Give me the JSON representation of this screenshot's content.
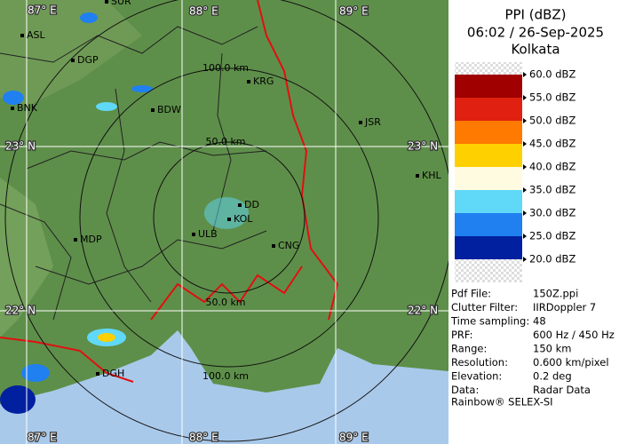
{
  "map": {
    "cities": [
      "SUR",
      "ASL",
      "DGP",
      "BNK",
      "BDW",
      "KRG",
      "JSR",
      "KHL",
      "DD",
      "KOL",
      "ULB",
      "CNG",
      "MDP",
      "DGH"
    ],
    "range_labels": [
      "100.0 km",
      "50.0 km",
      "50.0 km",
      "100.0 km"
    ],
    "grid_labels": [
      "87° E",
      "88° E",
      "89° E",
      "87° E",
      "88° E",
      "89° E",
      "23° N",
      "23° N",
      "22° N",
      "22° N"
    ]
  },
  "panel": {
    "title": "PPI (dBZ)",
    "time": "06:02 / 26-Sep-2025",
    "site": "Kolkata",
    "scale": [
      {
        "label": "60.0 dBZ",
        "color": "#a00000"
      },
      {
        "label": "55.0 dBZ",
        "color": "#e02010"
      },
      {
        "label": "50.0 dBZ",
        "color": "#ff7a00"
      },
      {
        "label": "45.0 dBZ",
        "color": "#ffd000"
      },
      {
        "label": "40.0 dBZ",
        "color": "#fffbe0"
      },
      {
        "label": "35.0 dBZ",
        "color": "#60d8f8"
      },
      {
        "label": "30.0 dBZ",
        "color": "#2080f0"
      },
      {
        "label": "25.0 dBZ",
        "color": "#0020a0"
      },
      {
        "label": "20.0 dBZ",
        "color": "#e8e8e8"
      }
    ],
    "info": [
      [
        "Pdf File:",
        "150Z.ppi"
      ],
      [
        "Clutter Filter:",
        "IIRDoppler 7"
      ],
      [
        "Time sampling:",
        "48"
      ],
      [
        "PRF:",
        "600 Hz / 450 Hz"
      ],
      [
        "Range:",
        "150 km"
      ],
      [
        "Resolution:",
        "0.600 km/pixel"
      ],
      [
        "Elevation:",
        "0.2 deg"
      ],
      [
        "Data:",
        "Radar Data"
      ]
    ],
    "footer": "Rainbow® SELEX-SI"
  }
}
